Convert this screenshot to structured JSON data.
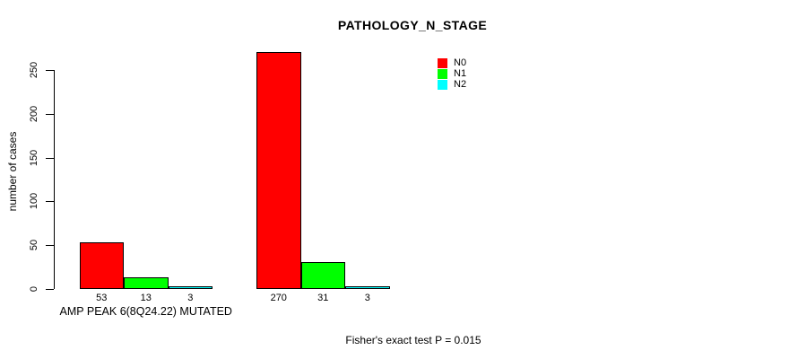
{
  "chart_data": {
    "type": "bar",
    "title": "PATHOLOGY_N_STAGE",
    "xlabel": "",
    "ylabel": "number of cases",
    "categories": [
      "AMP PEAK 6(8Q24.22) MUTATED",
      ""
    ],
    "series": [
      {
        "name": "N0",
        "color": "#ff0000",
        "values": [
          53,
          270
        ]
      },
      {
        "name": "N1",
        "color": "#00ff00",
        "values": [
          13,
          31
        ]
      },
      {
        "name": "N2",
        "color": "#00ffff",
        "values": [
          3,
          3
        ]
      }
    ],
    "bar_value_labels": [
      [
        "53",
        "270"
      ],
      [
        "13",
        "31"
      ],
      [
        "3",
        "3"
      ]
    ],
    "yticks": [
      0,
      50,
      100,
      150,
      200,
      250
    ],
    "ylim": [
      0,
      278
    ],
    "grid": false,
    "legend_position": "top-right",
    "legend": [
      {
        "label": "N0",
        "color": "#ff0000"
      },
      {
        "label": "N1",
        "color": "#00ff00"
      },
      {
        "label": "N2",
        "color": "#00ffff"
      }
    ],
    "annotation": "Fisher's exact test P = 0.015"
  },
  "colors": {
    "axis": "#000000",
    "background": "#ffffff",
    "text": "#000000"
  }
}
